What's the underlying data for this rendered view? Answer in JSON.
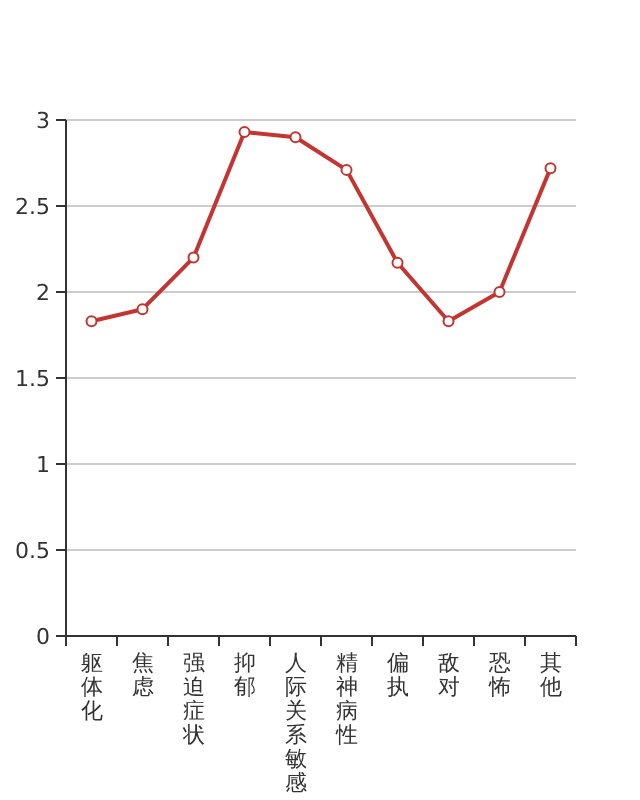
{
  "chart_data": {
    "type": "line",
    "categories": [
      "躯体化",
      "焦虑",
      "强迫症状",
      "抑郁",
      "人际关系敏感",
      "精神病性",
      "偏执",
      "敌对",
      "恐怖",
      "其他"
    ],
    "values": [
      1.83,
      1.9,
      2.2,
      2.93,
      2.9,
      2.71,
      2.17,
      1.83,
      2.0,
      2.72
    ],
    "color": "#c23531",
    "ylim": [
      0,
      3
    ],
    "yticks": [
      0,
      0.5,
      1,
      1.5,
      2,
      2.5,
      3
    ],
    "grid": "y",
    "marker": "circle",
    "line_style": "solid"
  }
}
